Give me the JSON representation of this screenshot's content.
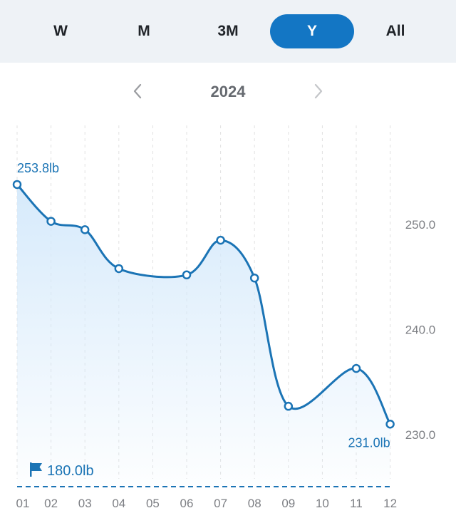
{
  "period_tabs": [
    {
      "label": "W",
      "active": false
    },
    {
      "label": "M",
      "active": false
    },
    {
      "label": "3M",
      "active": false
    },
    {
      "label": "Y",
      "active": true
    },
    {
      "label": "All",
      "active": false
    }
  ],
  "year_nav": {
    "year": "2024",
    "prev_icon": "chevron-left-icon",
    "next_icon": "chevron-right-icon"
  },
  "colors": {
    "accent": "#1376c4",
    "line": "#1b74b5",
    "fill": "#d6eafb",
    "grid": "#e0e0e0",
    "tab_bg": "#eef2f6"
  },
  "chart_data": {
    "type": "area",
    "categories": [
      "01",
      "02",
      "03",
      "04",
      "05",
      "06",
      "07",
      "08",
      "09",
      "10",
      "11",
      "12"
    ],
    "series": [
      {
        "values": [
          253.8,
          250.3,
          249.5,
          245.8,
          null,
          245.2,
          248.5,
          244.9,
          232.7,
          null,
          236.3,
          231.0
        ]
      }
    ],
    "y_ticks": [
      250.0,
      240.0,
      230.0
    ],
    "y_tick_labels": [
      "250.0",
      "240.0",
      "230.0"
    ],
    "ylim": [
      225.5,
      257.5
    ],
    "start_label": "253.8lb",
    "end_label": "231.0lb",
    "goal": {
      "value": 180.0,
      "label": "180.0lb",
      "icon": "flag-icon"
    },
    "grid": "vertical dashed",
    "y_axis_side": "right"
  }
}
